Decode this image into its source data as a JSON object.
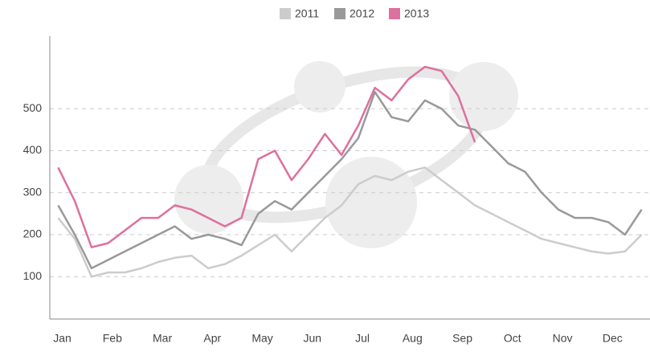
{
  "chart_data": {
    "type": "line",
    "categories": [
      null,
      "Jan",
      null,
      null,
      "Feb",
      null,
      null,
      "Mar",
      null,
      null,
      "Apr",
      null,
      null,
      "May",
      null,
      null,
      "Jun",
      null,
      null,
      "Jul",
      null,
      null,
      "Aug",
      null,
      null,
      "Sep",
      null,
      null,
      "Oct",
      null,
      null,
      "Nov",
      null,
      null,
      "Dec",
      null
    ],
    "series": [
      {
        "name": "2011",
        "color": "#cccccc",
        "values": [
          240,
          190,
          100,
          110,
          110,
          120,
          135,
          145,
          150,
          120,
          130,
          150,
          175,
          200,
          160,
          200,
          240,
          270,
          320,
          340,
          330,
          350,
          360,
          330,
          300,
          270,
          250,
          230,
          210,
          190,
          180,
          170,
          160,
          155,
          160,
          200
        ]
      },
      {
        "name": "2012",
        "color": "#999999",
        "values": [
          270,
          200,
          120,
          140,
          160,
          180,
          200,
          220,
          190,
          200,
          190,
          175,
          250,
          280,
          260,
          300,
          340,
          380,
          430,
          540,
          480,
          470,
          520,
          500,
          460,
          450,
          410,
          370,
          350,
          300,
          260,
          240,
          240,
          230,
          200,
          260
        ]
      },
      {
        "name": "2013",
        "color": "#dd709e",
        "values": [
          360,
          280,
          170,
          180,
          210,
          240,
          240,
          270,
          260,
          240,
          220,
          240,
          380,
          400,
          330,
          380,
          440,
          390,
          460,
          550,
          520,
          570,
          600,
          590,
          530,
          420,
          null,
          null,
          null,
          null,
          null,
          null,
          null,
          null,
          null,
          null
        ]
      }
    ],
    "ylim": [
      0,
      670
    ],
    "yticks": [
      100,
      200,
      300,
      400,
      500
    ],
    "grid": true
  }
}
